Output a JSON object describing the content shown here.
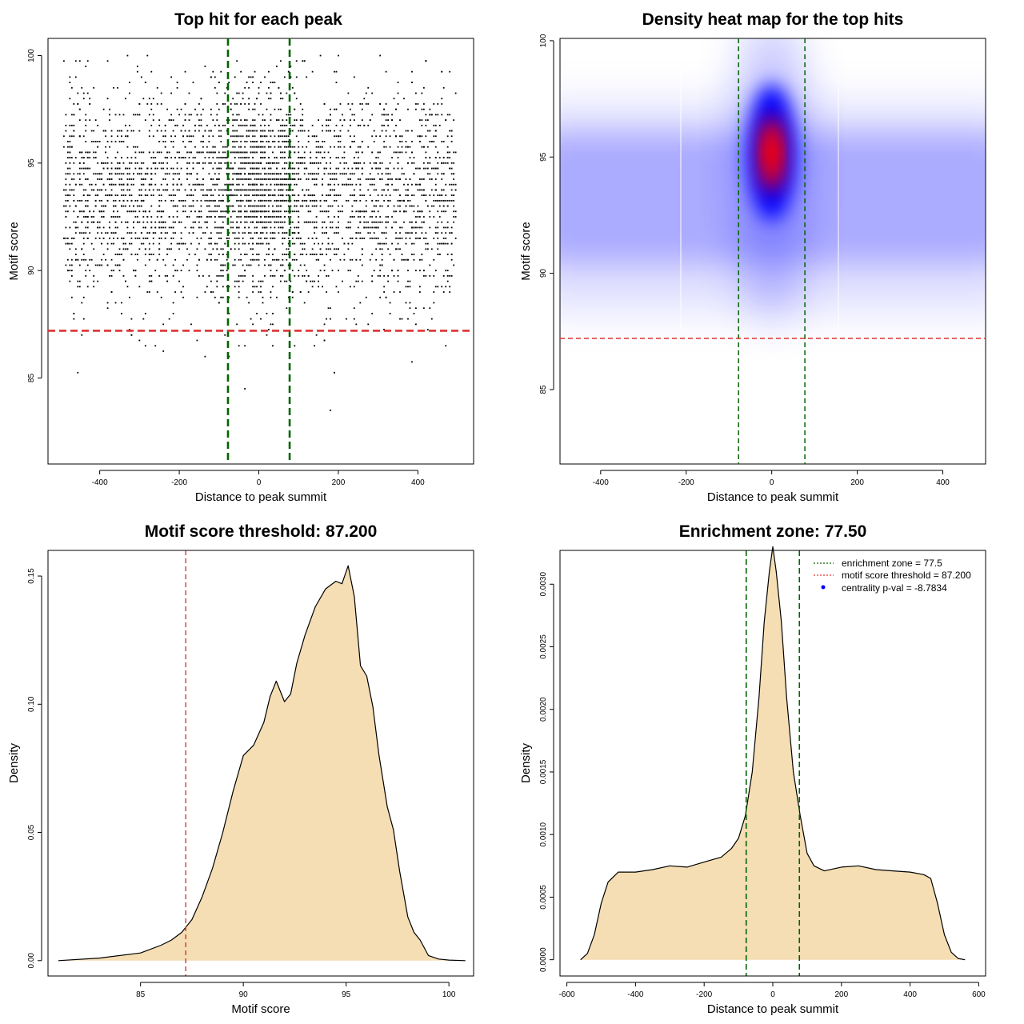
{
  "colors": {
    "zone_line": "#006400",
    "threshold_line": "#DD3333",
    "density_fill": "#F5DEB3",
    "point": "#000000",
    "heat_low": "#FFFFFF",
    "heat_mid": "#0000FF",
    "heat_high": "#FF0000",
    "legend_pval_point": "#0000FF"
  },
  "chart_data": [
    {
      "id": "scatter",
      "type": "scatter",
      "title": "Top hit for each peak",
      "xlabel": "Distance to peak summit",
      "ylabel": "Motif score",
      "xlim": [
        -530,
        540
      ],
      "ylim": [
        81,
        100.8
      ],
      "xticks": [
        -400,
        -200,
        0,
        200,
        400
      ],
      "yticks": [
        85,
        90,
        95,
        100
      ],
      "vlines": [
        -77.5,
        77.5
      ],
      "hline": 87.2,
      "distribution": {
        "x_range": [
          -490,
          495
        ],
        "score_mean": 93.5,
        "score_sd": 2.5,
        "score_max": 100,
        "center_spread": 60
      }
    },
    {
      "id": "heatmap",
      "type": "heatmap",
      "title": "Density heat map for the top hits",
      "xlabel": "Distance to peak summit",
      "ylabel": "Motif score",
      "xlim": [
        -495,
        500
      ],
      "ylim": [
        81.8,
        100.1
      ],
      "xticks": [
        -400,
        -200,
        0,
        200,
        400
      ],
      "yticks": [
        85,
        90,
        95,
        100
      ],
      "vlines": [
        -77.5,
        77.5
      ],
      "hline": 87.2,
      "hotspot": {
        "x": 0,
        "y": 95.2
      }
    },
    {
      "id": "score_density",
      "type": "area",
      "title": "Motif score threshold: 87.200",
      "xlabel": "Motif score",
      "ylabel": "Density",
      "xlim": [
        80.5,
        101.2
      ],
      "ylim": [
        -0.006,
        0.16
      ],
      "xticks": [
        85,
        90,
        95,
        100
      ],
      "yticks": [
        0.0,
        0.05,
        0.1,
        0.15
      ],
      "ytick_labels": [
        "0.00",
        "0.05",
        "0.10",
        "0.15"
      ],
      "vline": 87.2,
      "x": [
        81,
        83,
        85,
        86,
        86.5,
        87,
        87.5,
        88,
        88.5,
        89,
        89.5,
        90,
        90.5,
        91,
        91.3,
        91.6,
        92,
        92.3,
        92.6,
        93,
        93.5,
        94,
        94.5,
        94.8,
        95.1,
        95.4,
        95.7,
        96,
        96.3,
        96.6,
        97,
        97.3,
        97.6,
        98,
        98.3,
        98.6,
        99,
        99.5,
        100,
        100.8
      ],
      "y": [
        0.0,
        0.001,
        0.003,
        0.006,
        0.008,
        0.011,
        0.016,
        0.025,
        0.036,
        0.05,
        0.066,
        0.08,
        0.084,
        0.093,
        0.103,
        0.109,
        0.101,
        0.104,
        0.116,
        0.127,
        0.138,
        0.145,
        0.148,
        0.147,
        0.154,
        0.142,
        0.115,
        0.111,
        0.099,
        0.08,
        0.06,
        0.051,
        0.035,
        0.017,
        0.011,
        0.008,
        0.002,
        0.0006,
        0.0002,
        0.0
      ]
    },
    {
      "id": "distance_density",
      "type": "area",
      "title": "Enrichment zone: 77.50",
      "xlabel": "Distance to peak summit",
      "ylabel": "Density",
      "xlim": [
        -620,
        620
      ],
      "ylim": [
        -0.00013,
        0.00327
      ],
      "xticks": [
        -600,
        -400,
        -200,
        0,
        200,
        400,
        600
      ],
      "yticks": [
        0.0,
        0.0005,
        0.001,
        0.0015,
        0.002,
        0.0025,
        0.003
      ],
      "ytick_labels": [
        "0.0000",
        "0.0005",
        "0.0010",
        "0.0015",
        "0.0020",
        "0.0025",
        "0.0030"
      ],
      "vlines": [
        -77.5,
        77.5
      ],
      "x": [
        -560,
        -540,
        -520,
        -500,
        -480,
        -450,
        -400,
        -350,
        -300,
        -250,
        -200,
        -150,
        -120,
        -100,
        -80,
        -60,
        -40,
        -25,
        -10,
        0,
        10,
        25,
        40,
        60,
        80,
        100,
        120,
        150,
        200,
        250,
        300,
        350,
        400,
        440,
        460,
        480,
        500,
        520,
        540,
        560
      ],
      "y": [
        0.0,
        5e-05,
        0.0002,
        0.00045,
        0.00062,
        0.0007,
        0.0007,
        0.00072,
        0.00075,
        0.00074,
        0.00078,
        0.00082,
        0.00089,
        0.00097,
        0.00115,
        0.0015,
        0.0021,
        0.0027,
        0.0031,
        0.0033,
        0.0031,
        0.0027,
        0.0021,
        0.0015,
        0.00115,
        0.00085,
        0.00075,
        0.00071,
        0.00074,
        0.00075,
        0.00072,
        0.00071,
        0.0007,
        0.00068,
        0.00065,
        0.00045,
        0.0002,
        6e-05,
        1e-05,
        0.0
      ],
      "legend": [
        {
          "label": "enrichment zone = 77.5",
          "kind": "line",
          "color": "#006400"
        },
        {
          "label": "motif score threshold = 87.200",
          "kind": "line",
          "color": "#DD3333"
        },
        {
          "label": "centrality p-val = -8.7834",
          "kind": "point",
          "color": "#0000FF"
        }
      ],
      "legend_position": "top-right"
    }
  ]
}
